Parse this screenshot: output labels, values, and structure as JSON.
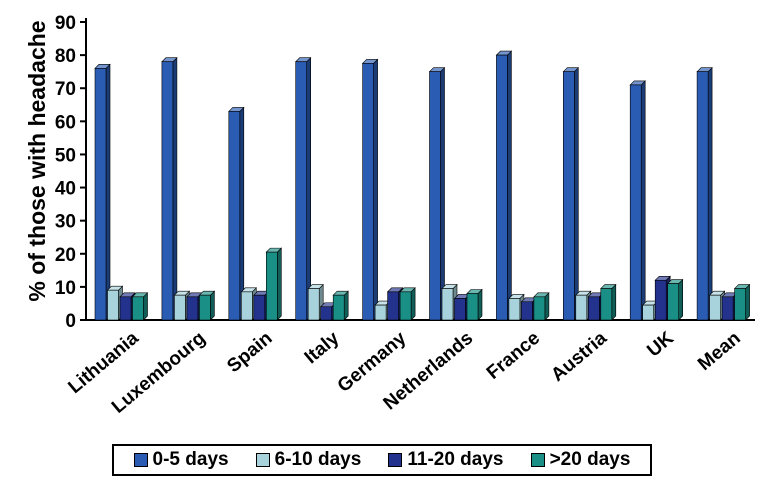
{
  "chart_data": {
    "type": "bar",
    "ylabel": "% of those with headache",
    "xlabel": "",
    "ylim": [
      0,
      90
    ],
    "yticks": [
      "0",
      "10",
      "20",
      "30",
      "40",
      "50",
      "60",
      "70",
      "80",
      "90"
    ],
    "categories": [
      "Lithuania",
      "Luxembourg",
      "Spain",
      "Italy",
      "Germany",
      "Netherlands",
      "France",
      "Austria",
      "UK",
      "Mean"
    ],
    "series": [
      {
        "name": "0-5 days",
        "color": "#2a5cb4",
        "values": [
          76,
          78,
          63,
          78,
          77.5,
          75,
          80,
          75,
          71,
          75
        ]
      },
      {
        "name": "6-10 days",
        "color": "#a9d3dc",
        "values": [
          9,
          7.5,
          8.5,
          9.5,
          4.5,
          9.5,
          6.5,
          7.5,
          4.5,
          7.5
        ]
      },
      {
        "name": "11-20 days",
        "color": "#23328c",
        "values": [
          7,
          7,
          7.5,
          4,
          8.5,
          6.5,
          5.5,
          7,
          12,
          7
        ]
      },
      {
        "name": ">20 days",
        "color": "#1a8f86",
        "values": [
          7,
          7.5,
          20.5,
          7.5,
          8.5,
          8,
          7,
          9.5,
          11,
          9.5
        ]
      }
    ],
    "grid": false,
    "legend_position": "bottom"
  }
}
